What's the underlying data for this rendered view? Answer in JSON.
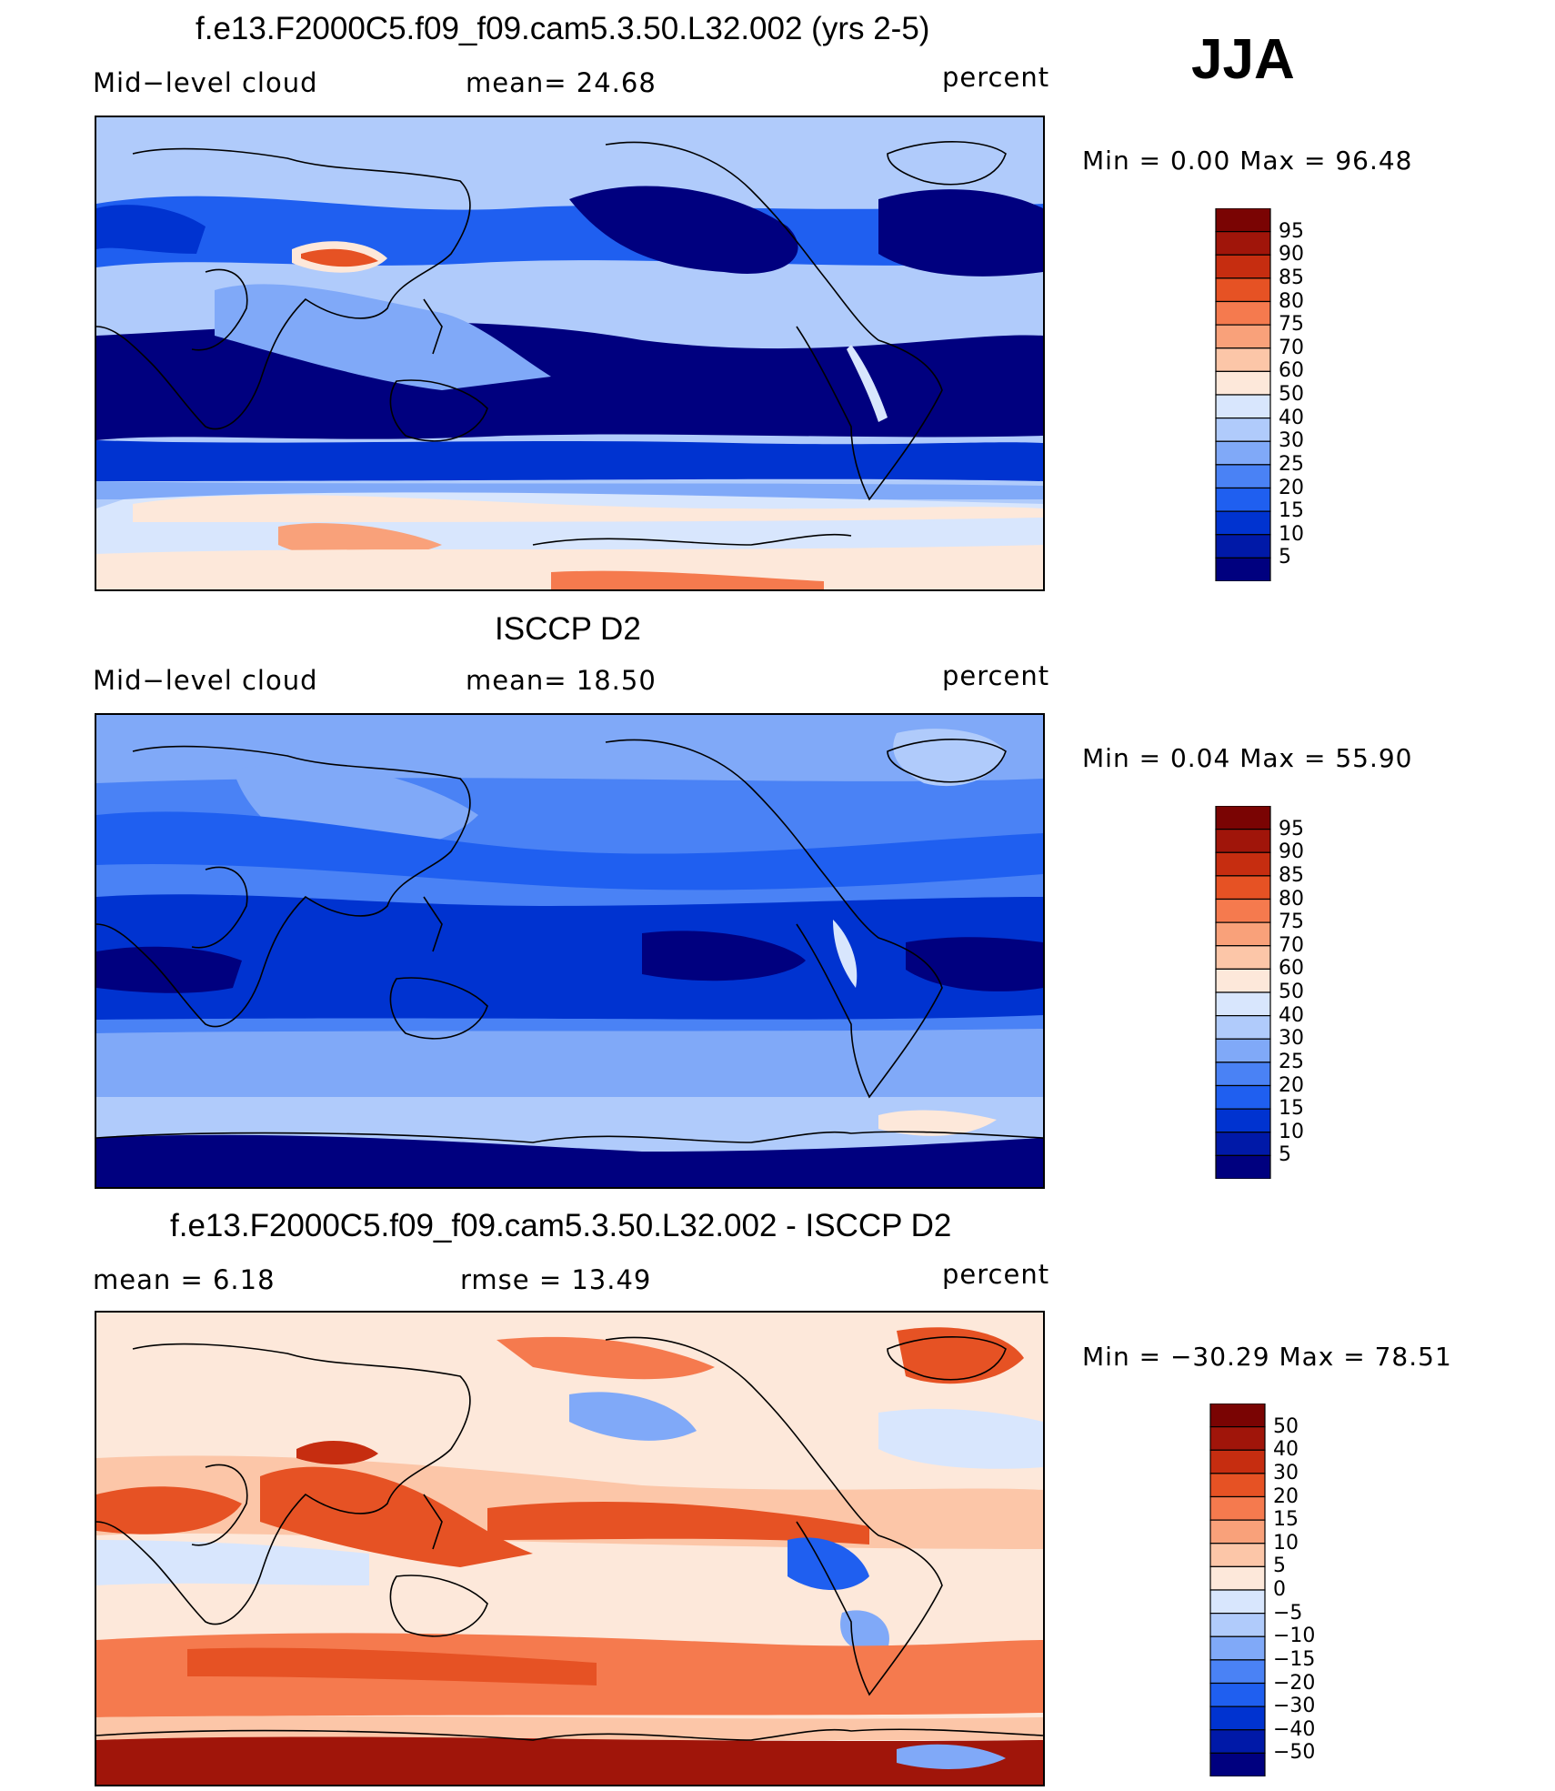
{
  "season": "JJA",
  "contour_colors": {
    "12": [
      "#00007f",
      "#0019a8",
      "#0033d0",
      "#1f5ff0",
      "#4a82f5",
      "#80a9f8",
      "#b0cbfb",
      "#d8e6fd",
      "#fde8da",
      "#fcc6a8",
      "#f9a17a",
      "#f57a4e",
      "#e65224",
      "#c62d10",
      "#a0150a",
      "#7a0403"
    ],
    "diff": [
      "#00007f",
      "#0019a8",
      "#0033d0",
      "#1f5ff0",
      "#4a82f5",
      "#80a9f8",
      "#b0cbfb",
      "#d8e6fd",
      "#fde8da",
      "#fcc6a8",
      "#f9a17a",
      "#f57a4e",
      "#e65224",
      "#c62d10",
      "#a0150a",
      "#7a0403"
    ]
  },
  "panels": [
    {
      "title": "f.e13.F2000C5.f09_f09.cam5.3.50.L32.002 (yrs 2-5)",
      "left_label": "Mid−level cloud",
      "center_label": "mean=   24.68",
      "units": "percent",
      "minmax": "Min  =     0.00  Max  =    96.48",
      "colorbar_labels": [
        "95",
        "90",
        "85",
        "80",
        "75",
        "70",
        "60",
        "50",
        "40",
        "30",
        "25",
        "20",
        "15",
        "10",
        "5"
      ]
    },
    {
      "title": "ISCCP D2",
      "left_label": "Mid−level cloud",
      "center_label": "mean=   18.50",
      "units": "percent",
      "minmax": "Min  =     0.04  Max  =    55.90",
      "colorbar_labels": [
        "95",
        "90",
        "85",
        "80",
        "75",
        "70",
        "60",
        "50",
        "40",
        "30",
        "25",
        "20",
        "15",
        "10",
        "5"
      ]
    },
    {
      "title": "f.e13.F2000C5.f09_f09.cam5.3.50.L32.002 - ISCCP D2",
      "left_label": "mean  =      6.18",
      "center_label": "rmse  =    13.49",
      "units": "percent",
      "minmax": "Min  = −30.29  Max  =    78.51",
      "colorbar_labels": [
        "50",
        "40",
        "30",
        "20",
        "15",
        "10",
        "5",
        "0",
        "−5",
        "−10",
        "−15",
        "−20",
        "−30",
        "−40",
        "−50"
      ]
    }
  ]
}
